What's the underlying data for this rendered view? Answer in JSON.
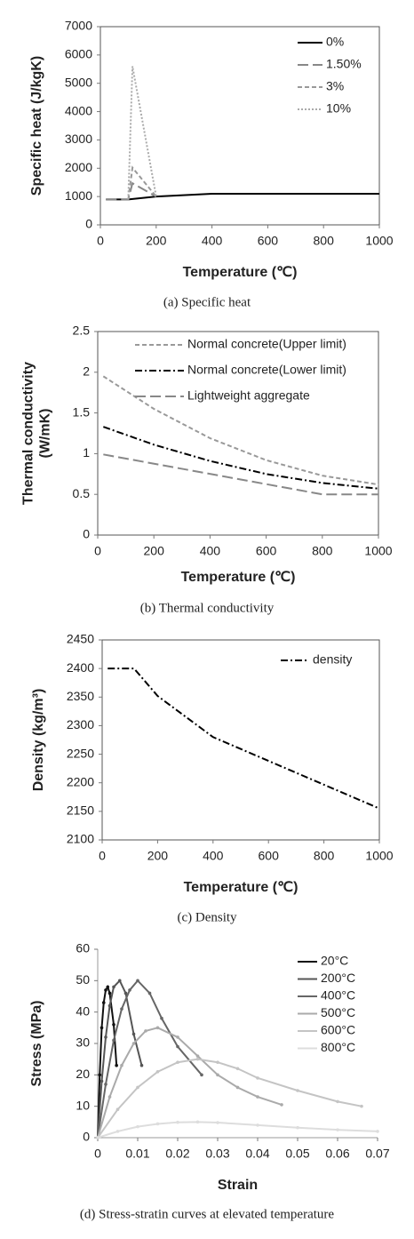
{
  "chart_data": [
    {
      "type": "line",
      "caption": "(a) Specific heat",
      "x_label": "Temperature (℃)",
      "y_label": [
        "Specific heat (J/kgK)"
      ],
      "xlim": [
        0,
        1000
      ],
      "xticks": [
        0,
        200,
        400,
        600,
        800,
        1000
      ],
      "ylim": [
        0,
        7000
      ],
      "yticks": [
        0,
        1000,
        2000,
        3000,
        4000,
        5000,
        6000,
        7000
      ],
      "series": [
        {
          "name": "0%",
          "color": "#000000",
          "line_style": "solid",
          "x": [
            20,
            100,
            200,
            400,
            1000
          ],
          "values": [
            900,
            900,
            1000,
            1100,
            1100
          ]
        },
        {
          "name": "1.50%",
          "color": "#888888",
          "line_style": "longdash",
          "x": [
            20,
            100,
            115,
            200
          ],
          "values": [
            900,
            900,
            1470,
            1000
          ]
        },
        {
          "name": "3%",
          "color": "#999999",
          "line_style": "dashed",
          "x": [
            100,
            115,
            200
          ],
          "values": [
            900,
            2020,
            1000
          ]
        },
        {
          "name": "10%",
          "color": "#aaaaaa",
          "line_style": "dotted",
          "x": [
            100,
            115,
            200
          ],
          "values": [
            900,
            5600,
            1000
          ]
        }
      ]
    },
    {
      "type": "line",
      "caption": "(b) Thermal conductivity",
      "x_label": "Temperature (℃)",
      "y_label": [
        "Thermal conductivity",
        "(W/mK)"
      ],
      "xlim": [
        0,
        1000
      ],
      "xticks": [
        0,
        200,
        400,
        600,
        800,
        1000
      ],
      "ylim": [
        0,
        2.5
      ],
      "yticks": [
        0,
        0.5,
        1,
        1.5,
        2,
        2.5
      ],
      "series": [
        {
          "name": "Normal concrete(Upper limit)",
          "color": "#999999",
          "line_style": "dashed",
          "x": [
            20,
            200,
            400,
            600,
            800,
            1000
          ],
          "values": [
            1.95,
            1.55,
            1.19,
            0.92,
            0.73,
            0.62
          ]
        },
        {
          "name": "Normal concrete(Lower limit)",
          "color": "#000000",
          "line_style": "dashdot",
          "x": [
            20,
            200,
            400,
            600,
            800,
            1000
          ],
          "values": [
            1.33,
            1.11,
            0.91,
            0.75,
            0.64,
            0.57
          ]
        },
        {
          "name": "Lightweight aggregate",
          "color": "#888888",
          "line_style": "longdash",
          "x": [
            20,
            800,
            1000
          ],
          "values": [
            0.99,
            0.5,
            0.5
          ]
        }
      ]
    },
    {
      "type": "line",
      "caption": "(c) Density",
      "x_label": "Temperature (℃)",
      "y_label": [
        "Density (kg/m³)"
      ],
      "xlim": [
        0,
        1000
      ],
      "xticks": [
        0,
        200,
        400,
        600,
        800,
        1000
      ],
      "ylim": [
        2100,
        2450
      ],
      "yticks": [
        2100,
        2150,
        2200,
        2250,
        2300,
        2350,
        2400,
        2450
      ],
      "series": [
        {
          "name": "density",
          "color": "#000000",
          "line_style": "dashdot",
          "x": [
            20,
            115,
            200,
            400,
            1000
          ],
          "values": [
            2400,
            2400,
            2352,
            2280,
            2155
          ]
        }
      ]
    },
    {
      "type": "line",
      "caption": "(d) Stress-stratin curves at elevated temperature",
      "x_label": "Strain",
      "y_label": [
        "Stress (MPa)"
      ],
      "xlim": [
        0,
        0.07
      ],
      "xticks": [
        0,
        0.01,
        0.02,
        0.03,
        0.04,
        0.05,
        0.06,
        0.07
      ],
      "ylim": [
        0,
        60
      ],
      "yticks": [
        0,
        10,
        20,
        30,
        40,
        50,
        60
      ],
      "markers": true,
      "series": [
        {
          "name": "20°C",
          "color": "#111111",
          "line_style": "solid",
          "x": [
            0,
            0.0005,
            0.001,
            0.0015,
            0.002,
            0.0025,
            0.003,
            0.004,
            0.0047
          ],
          "values": [
            0,
            20,
            35,
            43,
            47,
            48,
            46,
            36,
            23
          ]
        },
        {
          "name": "200°C",
          "color": "#555555",
          "line_style": "solid",
          "x": [
            0,
            0.001,
            0.002,
            0.003,
            0.004,
            0.0055,
            0.007,
            0.009,
            0.011
          ],
          "values": [
            0,
            18,
            32,
            42,
            48,
            50,
            46,
            33,
            23
          ]
        },
        {
          "name": "400°C",
          "color": "#666666",
          "line_style": "solid",
          "x": [
            0,
            0.002,
            0.004,
            0.006,
            0.008,
            0.01,
            0.013,
            0.016,
            0.02,
            0.026
          ],
          "values": [
            0,
            17,
            31,
            41,
            47,
            50,
            46,
            38,
            29,
            20
          ]
        },
        {
          "name": "500°C",
          "color": "#aaaaaa",
          "line_style": "solid",
          "x": [
            0,
            0.003,
            0.006,
            0.009,
            0.012,
            0.015,
            0.02,
            0.025,
            0.03,
            0.035,
            0.04,
            0.046
          ],
          "values": [
            0,
            13,
            23,
            30,
            34,
            35,
            32,
            26,
            20,
            16,
            13,
            10.5
          ]
        },
        {
          "name": "600°C",
          "color": "#c4c4c4",
          "line_style": "solid",
          "x": [
            0,
            0.005,
            0.01,
            0.015,
            0.02,
            0.025,
            0.03,
            0.035,
            0.04,
            0.05,
            0.06,
            0.066
          ],
          "values": [
            0,
            9,
            16,
            21,
            24,
            25,
            24,
            22,
            19,
            15,
            11.5,
            10
          ]
        },
        {
          "name": "800°C",
          "color": "#dddddd",
          "line_style": "solid",
          "x": [
            0,
            0.005,
            0.01,
            0.015,
            0.02,
            0.025,
            0.03,
            0.04,
            0.05,
            0.06,
            0.07
          ],
          "values": [
            0,
            2,
            3.5,
            4.4,
            4.9,
            5,
            4.8,
            4,
            3.2,
            2.5,
            2
          ]
        }
      ]
    }
  ]
}
